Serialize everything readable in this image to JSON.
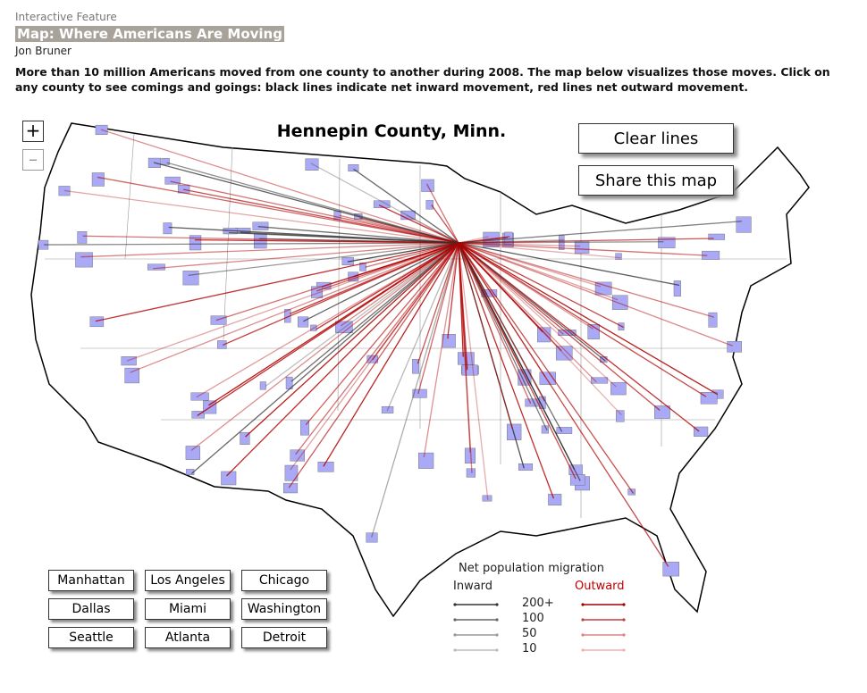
{
  "header": {
    "kicker": "Interactive Feature",
    "title": "Map: Where Americans Are Moving",
    "byline": "Jon Bruner",
    "description": "More than 10 million Americans moved from one county to another during 2008. The map below visualizes those moves. Click on any county to see comings and goings: black lines indicate net inward movement, red lines net outward movement."
  },
  "map": {
    "selected_county": "Hennepin County, Minn.",
    "zoom_in": "+",
    "zoom_out": "–"
  },
  "buttons": {
    "clear": "Clear lines",
    "share": "Share this map"
  },
  "quick_links": [
    "Manhattan",
    "Los Angeles",
    "Chicago",
    "Dallas",
    "Miami",
    "Washington",
    "Seattle",
    "Atlanta",
    "Detroit"
  ],
  "legend": {
    "title": "Net population migration",
    "inward": "Inward",
    "outward": "Outward",
    "levels": [
      "200+",
      "100",
      "50",
      "10"
    ]
  }
}
